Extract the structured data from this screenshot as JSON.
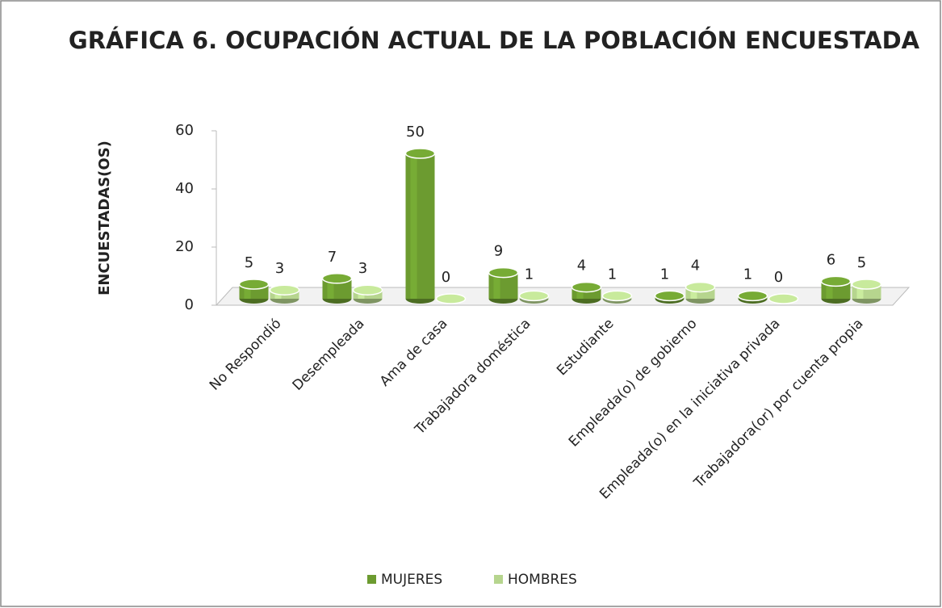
{
  "chart_data": {
    "type": "bar3d",
    "title": "GRÁFICA 6. OCUPACIÓN ACTUAL DE LA POBLACIÓN ENCUESTADA",
    "y_label": "ENCUESTADAS(OS)",
    "categories": [
      "No Respondió",
      "Desempleada",
      "Ama de casa",
      "Trabajadora doméstica",
      "Estudiante",
      "Empleada(o) de gobierno",
      "Empleada(o) en la iniciativa privada",
      "Trabajadora(or) por cuenta propia"
    ],
    "series": [
      {
        "name": "MUJERES",
        "color": "#6c9b30",
        "values": [
          5,
          7,
          50,
          9,
          4,
          1,
          1,
          6
        ]
      },
      {
        "name": "HOMBRES",
        "color": "#b6d58e",
        "values": [
          3,
          3,
          0,
          1,
          1,
          4,
          0,
          5
        ]
      }
    ],
    "ylim": [
      0,
      60
    ],
    "yticks": [
      0,
      20,
      40,
      60
    ],
    "legend": "bottom"
  }
}
